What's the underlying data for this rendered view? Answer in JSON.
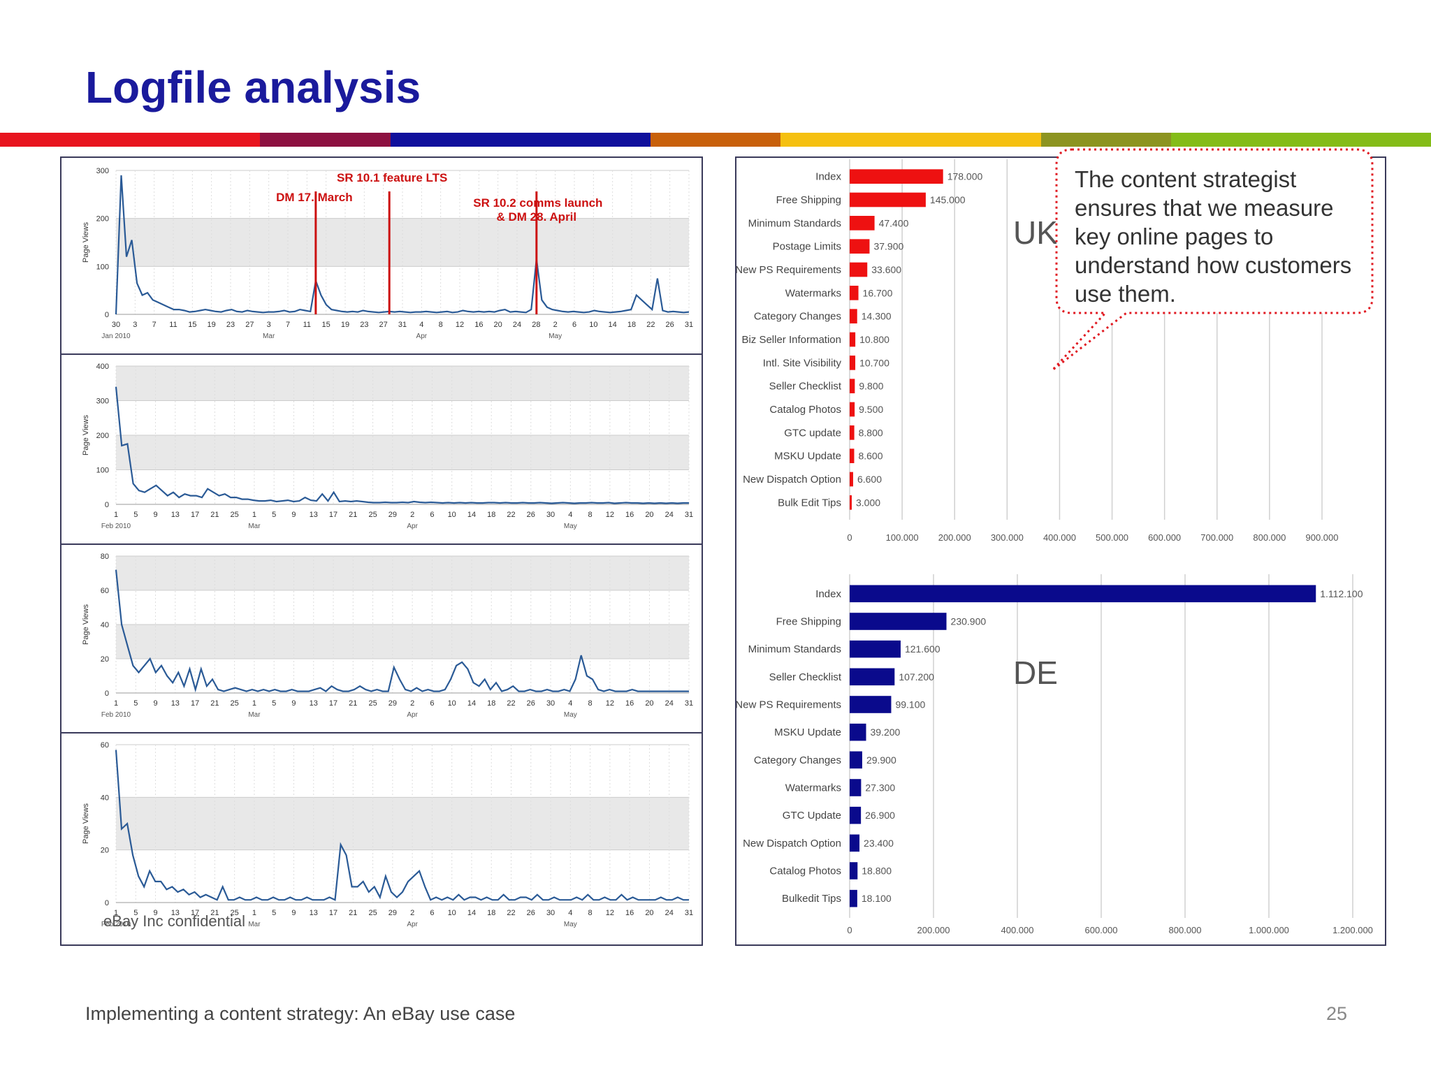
{
  "slide": {
    "title": "Logfile analysis",
    "footer": "Implementing a content strategy: An eBay use case",
    "page_number": "25",
    "confidential": "eBay Inc confidential",
    "callout": "The content strategist ensures that we measure key online pages to understand how customers use them.",
    "stripe_colors": [
      "#e8141e",
      "#e8141e",
      "#8c1040",
      "#0f0f9c",
      "#0f0f9c",
      "#c8600a",
      "#f5c010",
      "#f5c010",
      "#8c9420",
      "#84bc18",
      "#84bc18"
    ]
  },
  "chart_data": [
    {
      "type": "line",
      "ylabel": "Page Views",
      "ylim": [
        0,
        300
      ],
      "yticks": [
        "0",
        "100",
        "200",
        "300"
      ],
      "xticks": [
        "30",
        "3",
        "7",
        "11",
        "15",
        "19",
        "23",
        "27",
        "3",
        "7",
        "11",
        "15",
        "19",
        "23",
        "27",
        "31",
        "4",
        "8",
        "12",
        "16",
        "20",
        "24",
        "28",
        "2",
        "6",
        "10",
        "14",
        "18",
        "22",
        "26",
        "31"
      ],
      "month_labels": [
        {
          "text": "Jan 2010",
          "at": 0
        },
        {
          "text": "Mar",
          "at": 8
        },
        {
          "text": "Apr",
          "at": 16
        },
        {
          "text": "May",
          "at": 23
        }
      ],
      "values": [
        0,
        290,
        120,
        155,
        65,
        40,
        45,
        30,
        25,
        20,
        15,
        10,
        10,
        8,
        5,
        6,
        8,
        10,
        8,
        6,
        5,
        8,
        10,
        6,
        5,
        8,
        6,
        5,
        4,
        5,
        5,
        6,
        8,
        5,
        6,
        10,
        8,
        6,
        70,
        40,
        20,
        10,
        8,
        6,
        5,
        6,
        5,
        8,
        6,
        5,
        4,
        5,
        6,
        5,
        6,
        5,
        4,
        5,
        5,
        6,
        5,
        4,
        5,
        6,
        4,
        5,
        8,
        6,
        5,
        6,
        5,
        6,
        5,
        8,
        10,
        5,
        6,
        5,
        4,
        10,
        115,
        30,
        15,
        10,
        8,
        6,
        5,
        6,
        5,
        4,
        5,
        8,
        6,
        5,
        4,
        5,
        6,
        8,
        10,
        40,
        30,
        20,
        10,
        75,
        8,
        5,
        6,
        5,
        4,
        5
      ],
      "annotations": [
        {
          "text": "DM 17. March",
          "x": 38
        },
        {
          "text": "SR 10.1 feature LTS",
          "x": 52
        },
        {
          "text": "SR 10.2 comms launch",
          "text2": "& DM 28. April",
          "x": 80
        }
      ]
    },
    {
      "type": "line",
      "ylabel": "Page Views",
      "ylim": [
        0,
        400
      ],
      "yticks": [
        "0",
        "100",
        "200",
        "300",
        "400"
      ],
      "xticks": [
        "1",
        "5",
        "9",
        "13",
        "17",
        "21",
        "25",
        "1",
        "5",
        "9",
        "13",
        "17",
        "21",
        "25",
        "29",
        "2",
        "6",
        "10",
        "14",
        "18",
        "22",
        "26",
        "30",
        "4",
        "8",
        "12",
        "16",
        "20",
        "24",
        "31"
      ],
      "month_labels": [
        {
          "text": "Feb 2010",
          "at": 0
        },
        {
          "text": "Mar",
          "at": 7
        },
        {
          "text": "Apr",
          "at": 15
        },
        {
          "text": "May",
          "at": 23
        }
      ],
      "values": [
        340,
        170,
        175,
        60,
        40,
        35,
        45,
        55,
        40,
        25,
        35,
        20,
        30,
        25,
        25,
        20,
        45,
        35,
        25,
        30,
        20,
        20,
        15,
        15,
        12,
        10,
        10,
        12,
        8,
        10,
        12,
        8,
        10,
        20,
        12,
        10,
        30,
        10,
        35,
        8,
        10,
        8,
        10,
        8,
        6,
        5,
        5,
        6,
        5,
        5,
        6,
        5,
        8,
        6,
        5,
        6,
        5,
        4,
        5,
        4,
        5,
        4,
        5,
        4,
        4,
        5,
        5,
        4,
        5,
        4,
        4,
        5,
        4,
        4,
        5,
        4,
        3,
        4,
        5,
        4,
        3,
        4,
        4,
        5,
        4,
        4,
        5,
        3,
        4,
        5,
        4,
        4,
        3,
        4,
        3,
        4,
        3,
        4,
        3,
        4,
        4
      ]
    },
    {
      "type": "line",
      "ylabel": "Page Views",
      "ylim": [
        0,
        80
      ],
      "yticks": [
        "0",
        "20",
        "40",
        "60",
        "80"
      ],
      "xticks": [
        "1",
        "5",
        "9",
        "13",
        "17",
        "21",
        "25",
        "1",
        "5",
        "9",
        "13",
        "17",
        "21",
        "25",
        "29",
        "2",
        "6",
        "10",
        "14",
        "18",
        "22",
        "26",
        "30",
        "4",
        "8",
        "12",
        "16",
        "20",
        "24",
        "31"
      ],
      "month_labels": [
        {
          "text": "Feb 2010",
          "at": 0
        },
        {
          "text": "Mar",
          "at": 7
        },
        {
          "text": "Apr",
          "at": 15
        },
        {
          "text": "May",
          "at": 23
        }
      ],
      "values": [
        72,
        40,
        28,
        16,
        12,
        16,
        20,
        12,
        16,
        10,
        6,
        12,
        4,
        14,
        2,
        14,
        4,
        8,
        2,
        1,
        2,
        3,
        2,
        1,
        2,
        1,
        2,
        1,
        2,
        1,
        1,
        2,
        1,
        1,
        1,
        2,
        3,
        1,
        4,
        2,
        1,
        1,
        2,
        4,
        2,
        1,
        2,
        1,
        1,
        15,
        8,
        2,
        1,
        3,
        1,
        2,
        1,
        1,
        2,
        8,
        16,
        18,
        14,
        6,
        4,
        8,
        2,
        6,
        1,
        2,
        4,
        1,
        1,
        2,
        1,
        1,
        2,
        1,
        1,
        2,
        1,
        8,
        22,
        10,
        8,
        2,
        1,
        2,
        1,
        1,
        1,
        2,
        1,
        1,
        1,
        1,
        1,
        1,
        1,
        1,
        1,
        1
      ]
    },
    {
      "type": "line",
      "ylabel": "Page Views",
      "ylim": [
        0,
        60
      ],
      "yticks": [
        "0",
        "20",
        "40",
        "60"
      ],
      "xticks": [
        "1",
        "5",
        "9",
        "13",
        "17",
        "21",
        "25",
        "1",
        "5",
        "9",
        "13",
        "17",
        "21",
        "25",
        "29",
        "2",
        "6",
        "10",
        "14",
        "18",
        "22",
        "26",
        "30",
        "4",
        "8",
        "12",
        "16",
        "20",
        "24",
        "31"
      ],
      "month_labels": [
        {
          "text": "Feb 2010",
          "at": 0
        },
        {
          "text": "Mar",
          "at": 7
        },
        {
          "text": "Apr",
          "at": 15
        },
        {
          "text": "May",
          "at": 23
        }
      ],
      "values": [
        58,
        28,
        30,
        18,
        10,
        6,
        12,
        8,
        8,
        5,
        6,
        4,
        5,
        3,
        4,
        2,
        3,
        2,
        1,
        6,
        1,
        1,
        2,
        1,
        1,
        2,
        1,
        1,
        2,
        1,
        1,
        2,
        1,
        1,
        2,
        1,
        1,
        1,
        2,
        1,
        22,
        18,
        6,
        6,
        8,
        4,
        6,
        2,
        10,
        4,
        2,
        4,
        8,
        10,
        12,
        6,
        1,
        2,
        1,
        2,
        1,
        3,
        1,
        2,
        2,
        1,
        2,
        1,
        1,
        3,
        1,
        1,
        2,
        2,
        1,
        3,
        1,
        1,
        2,
        1,
        1,
        1,
        2,
        1,
        3,
        1,
        1,
        2,
        1,
        1,
        3,
        1,
        2,
        1,
        1,
        1,
        1,
        2,
        1,
        1,
        2,
        1,
        1
      ]
    },
    {
      "type": "bar",
      "orientation": "horizontal",
      "label": "UK",
      "color": "#ee1111",
      "categories": [
        "Index",
        "Free Shipping",
        "Minimum Standards",
        "Postage Limits",
        "New PS Requirements",
        "Watermarks",
        "Category Changes",
        "Biz Seller Information",
        "Intl. Site Visibility",
        "Seller Checklist",
        "Catalog Photos",
        "GTC update",
        "MSKU Update",
        "New Dispatch Option",
        "Bulk Edit Tips"
      ],
      "values": [
        178000,
        145000,
        47400,
        37900,
        33600,
        16700,
        14300,
        10800,
        10700,
        9800,
        9500,
        8800,
        8600,
        6600,
        3000
      ],
      "value_labels": [
        "178.000",
        "145.000",
        "47.400",
        "37.900",
        "33.600",
        "16.700",
        "14.300",
        "10.800",
        "10.700",
        "9.800",
        "9.500",
        "8.800",
        "8.600",
        "6.600",
        "3.000"
      ],
      "xlim": [
        0,
        900000
      ],
      "xticks": [
        "0",
        "100.000",
        "200.000",
        "300.000",
        "400.000",
        "500.000",
        "600.000",
        "700.000",
        "800.000",
        "900.000"
      ]
    },
    {
      "type": "bar",
      "orientation": "horizontal",
      "label": "DE",
      "color": "#0a0a8c",
      "categories": [
        "Index",
        "Free Shipping",
        "Minimum Standards",
        "Seller Checklist",
        "New PS Requirements",
        "MSKU Update",
        "Category Changes",
        "Watermarks",
        "GTC Update",
        "New Dispatch Option",
        "Catalog Photos",
        "Bulkedit Tips"
      ],
      "values": [
        1112100,
        230900,
        121600,
        107200,
        99100,
        39200,
        29900,
        27300,
        26900,
        23400,
        18800,
        18100
      ],
      "value_labels": [
        "1.112.100",
        "230.900",
        "121.600",
        "107.200",
        "99.100",
        "39.200",
        "29.900",
        "27.300",
        "26.900",
        "23.400",
        "18.800",
        "18.100"
      ],
      "xlim": [
        0,
        1200000
      ],
      "xticks": [
        "0",
        "200.000",
        "400.000",
        "600.000",
        "800.000",
        "1.000.000",
        "1.200.000"
      ]
    }
  ]
}
